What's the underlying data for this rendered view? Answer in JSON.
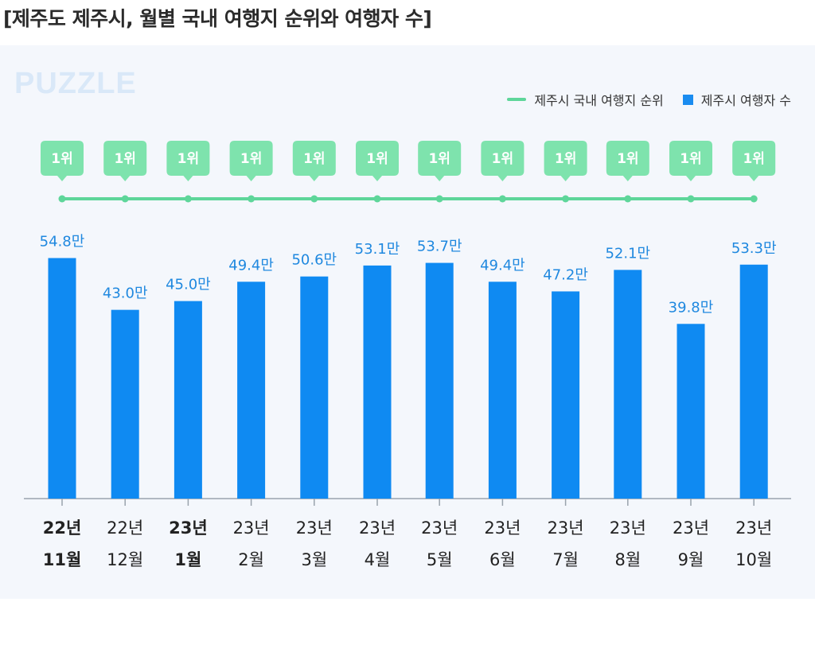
{
  "title": "[제주도 제주시, 월별 국내 여행지 순위와 여행자 수]",
  "watermark": "PUZZLE",
  "legend": {
    "rank_label": "제주시 국내 여행지 순위",
    "visitors_label": "제주시 여행자 수"
  },
  "colors": {
    "bar": "#0f8af2",
    "rank_line": "#5ed69a",
    "rank_badge": "#7ee3ad",
    "value_label": "#1f88df",
    "axis": "#9aa3ad"
  },
  "chart_data": {
    "type": "bar",
    "title": "[제주도 제주시, 월별 국내 여행지 순위와 여행자 수]",
    "categories": [
      {
        "year": "22년",
        "month": "11월",
        "emphasis": true
      },
      {
        "year": "22년",
        "month": "12월",
        "emphasis": false
      },
      {
        "year": "23년",
        "month": "1월",
        "emphasis": true
      },
      {
        "year": "23년",
        "month": "2월",
        "emphasis": false
      },
      {
        "year": "23년",
        "month": "3월",
        "emphasis": false
      },
      {
        "year": "23년",
        "month": "4월",
        "emphasis": false
      },
      {
        "year": "23년",
        "month": "5월",
        "emphasis": false
      },
      {
        "year": "23년",
        "month": "6월",
        "emphasis": false
      },
      {
        "year": "23년",
        "month": "7월",
        "emphasis": false
      },
      {
        "year": "23년",
        "month": "8월",
        "emphasis": false
      },
      {
        "year": "23년",
        "month": "9월",
        "emphasis": false
      },
      {
        "year": "23년",
        "month": "10월",
        "emphasis": false
      }
    ],
    "series": [
      {
        "name": "제주시 여행자 수",
        "type": "bar",
        "unit": "만",
        "values": [
          54.8,
          43.0,
          45.0,
          49.4,
          50.6,
          53.1,
          53.7,
          49.4,
          47.2,
          52.1,
          39.8,
          53.3
        ],
        "labels": [
          "54.8만",
          "43.0만",
          "45.0만",
          "49.4만",
          "50.6만",
          "53.1만",
          "53.7만",
          "49.4만",
          "47.2만",
          "52.1만",
          "39.8만",
          "53.3만"
        ]
      },
      {
        "name": "제주시 국내 여행지 순위",
        "type": "line",
        "values": [
          1,
          1,
          1,
          1,
          1,
          1,
          1,
          1,
          1,
          1,
          1,
          1
        ],
        "labels": [
          "1위",
          "1위",
          "1위",
          "1위",
          "1위",
          "1위",
          "1위",
          "1위",
          "1위",
          "1위",
          "1위",
          "1위"
        ]
      }
    ],
    "ylim": [
      0,
      60
    ],
    "legend_position": "top-right",
    "grid": false
  }
}
